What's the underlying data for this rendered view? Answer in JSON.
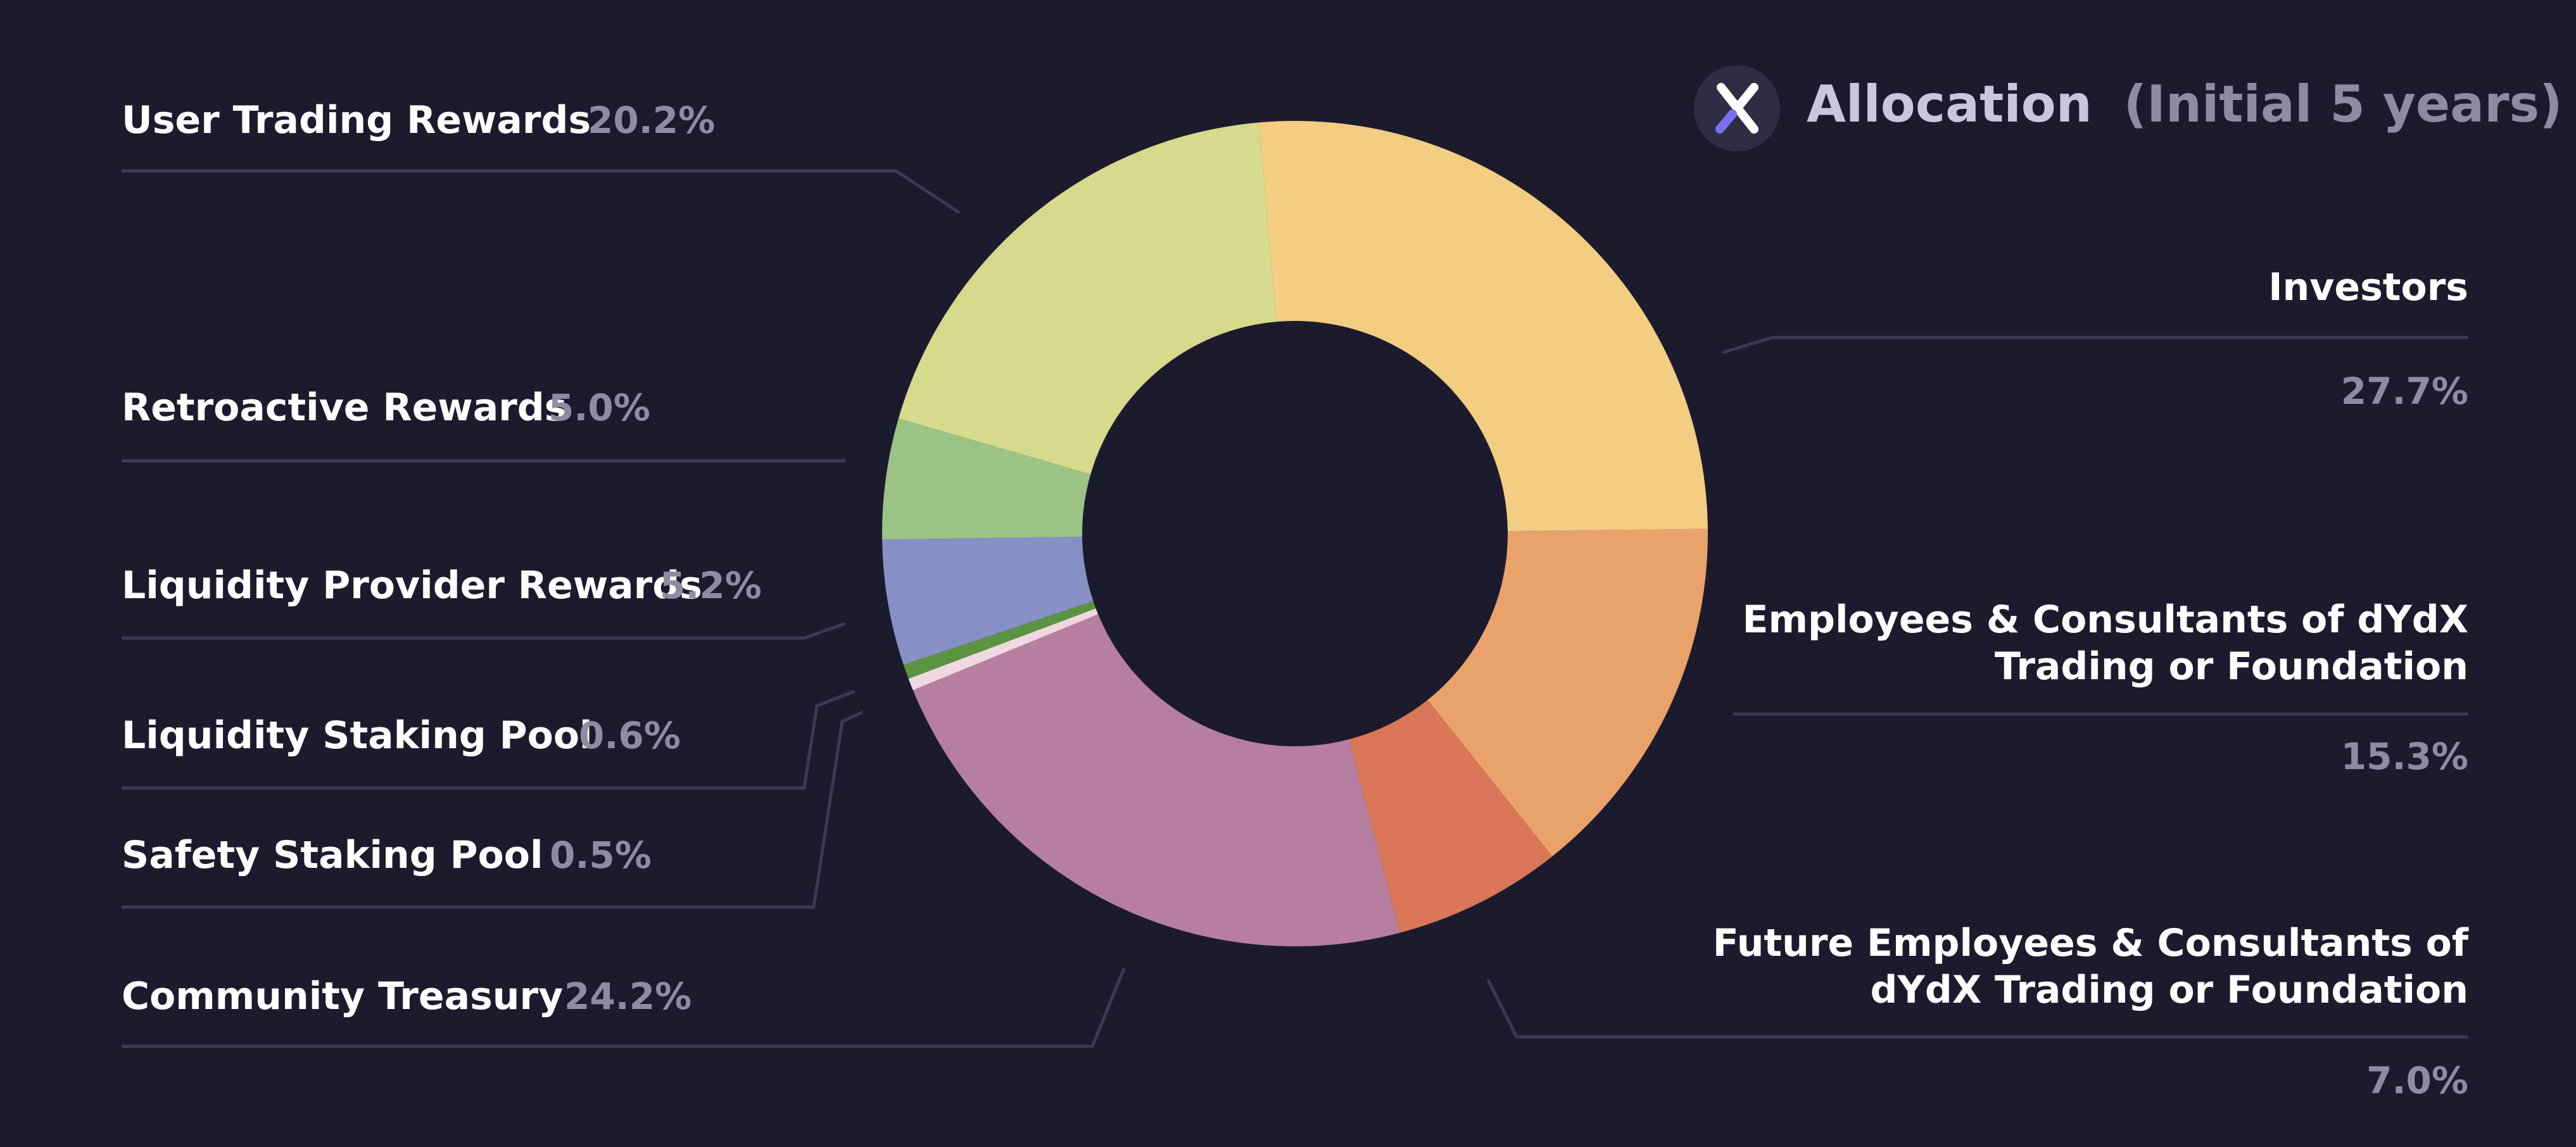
{
  "header": {
    "logo_letter": "X",
    "title": "Allocation",
    "subtitle": "(Initial 5 years)"
  },
  "colors": {
    "background": "#1c1b2e",
    "label_text": "#ffffff",
    "value_text": "#8e8ca3",
    "leader_line": "#3b3a52",
    "title_text": "#c9c7de",
    "subtitle_text": "#8e8ca3"
  },
  "chart_data": {
    "type": "pie",
    "donut": true,
    "title": "Allocation (Initial 5 years)",
    "slices": [
      {
        "label": "Investors",
        "value": 27.7,
        "value_label": "27.7%",
        "color": "#f2cd82"
      },
      {
        "label": "Employees & Consultants of dYdX Trading or Foundation",
        "value": 15.3,
        "value_label": "15.3%",
        "color": "#e8a26a"
      },
      {
        "label": "Future Employees & Consultants of dYdX Trading or Foundation",
        "value": 7.0,
        "value_label": "7.0%",
        "color": "#d97758"
      },
      {
        "label": "Community Treasury",
        "value": 24.2,
        "value_label": "24.2%",
        "color": "#b77f9f"
      },
      {
        "label": "Safety Staking Pool",
        "value": 0.5,
        "value_label": "0.5%",
        "color": "#f0d8e0"
      },
      {
        "label": "Liquidity Staking Pool",
        "value": 0.6,
        "value_label": "0.6%",
        "color": "#5a9440"
      },
      {
        "label": "Liquidity Provider Rewards",
        "value": 5.2,
        "value_label": "5.2%",
        "color": "#8690c4"
      },
      {
        "label": "Retroactive Rewards",
        "value": 5.0,
        "value_label": "5.0%",
        "color": "#9cc386"
      },
      {
        "label": "User Trading Rewards",
        "value": 20.2,
        "value_label": "20.2%",
        "color": "#d5da8c"
      }
    ],
    "label_lines": {
      "Employees & Consultants of dYdX Trading or Foundation": [
        "Employees & Consultants of dYdX",
        "Trading or Foundation"
      ],
      "Future Employees & Consultants of dYdX Trading or Foundation": [
        "Future Employees & Consultants of",
        "dYdX Trading or Foundation"
      ]
    }
  }
}
